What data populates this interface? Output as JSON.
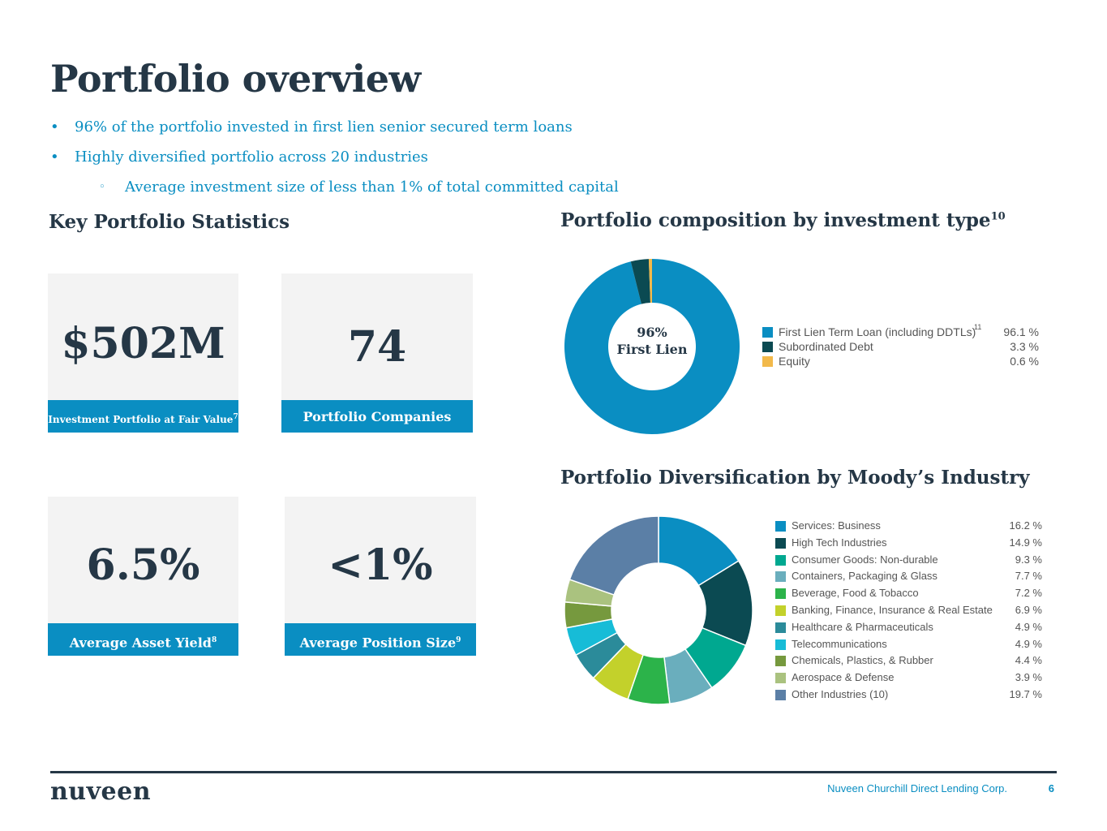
{
  "title": "Portfolio overview",
  "bullets": [
    "96% of the portfolio invested in first lien senior secured term loans",
    "Highly diversified portfolio across 20 industries",
    "Average investment size of less than 1% of total committed capital"
  ],
  "bullet_marks": {
    "primary": "•",
    "secondary": "◦"
  },
  "stats_title": "Key Portfolio Statistics",
  "stats": [
    {
      "value": "$502M",
      "label": "Investment Portfolio at Fair Value",
      "footnote": "7"
    },
    {
      "value": "74",
      "label": "Portfolio Companies",
      "footnote": ""
    },
    {
      "value": "6.5%",
      "label": "Average Asset Yield",
      "footnote": "8"
    },
    {
      "value": "<1%",
      "label": "Average Position Size",
      "footnote": "9"
    }
  ],
  "colors": {
    "accent": "#0a8ec2",
    "navy": "#253746",
    "card_bg": "#f3f3f3"
  },
  "chart_data": [
    {
      "type": "pie",
      "title": "Portfolio composition by investment type",
      "title_footnote": "10",
      "center_label": [
        "96%",
        "First Lien"
      ],
      "categories": [
        "First Lien Term Loan (including DDTLs)",
        "Subordinated Debt",
        "Equity"
      ],
      "values": [
        96.1,
        3.3,
        0.6
      ],
      "value_labels": [
        "96.1 %",
        "3.3 %",
        "0.6 %"
      ],
      "colors": [
        "#0a8ec2",
        "#0b4a52",
        "#f2b94a"
      ],
      "legend_footnote": "11",
      "legend": "right"
    },
    {
      "type": "pie",
      "title": "Portfolio Diversification by Moody’s Industry",
      "categories": [
        "Services: Business",
        "High Tech Industries",
        "Consumer Goods: Non-durable",
        "Containers, Packaging & Glass",
        "Beverage, Food & Tobacco",
        "Banking, Finance, Insurance & Real Estate",
        "Healthcare & Pharmaceuticals",
        "Telecommunications",
        "Chemicals, Plastics, & Rubber",
        "Aerospace & Defense",
        "Other Industries (10)"
      ],
      "values": [
        16.2,
        14.9,
        9.3,
        7.7,
        7.2,
        6.9,
        4.9,
        4.9,
        4.4,
        3.9,
        19.7
      ],
      "value_labels": [
        "16.2 %",
        "14.9 %",
        "9.3 %",
        "7.7 %",
        "7.2 %",
        "6.9 %",
        "4.9 %",
        "4.9 %",
        "4.4 %",
        "3.9 %",
        "19.7 %"
      ],
      "colors": [
        "#0a8ec2",
        "#0b4a52",
        "#00a890",
        "#6aaebd",
        "#2cb34a",
        "#c3d12b",
        "#2b8b9a",
        "#17bcd7",
        "#76993e",
        "#aac27f",
        "#5b7fa6"
      ],
      "legend": "right"
    }
  ],
  "footer": {
    "logo": "nuveen",
    "company": "Nuveen Churchill Direct Lending Corp.",
    "page": "6"
  }
}
